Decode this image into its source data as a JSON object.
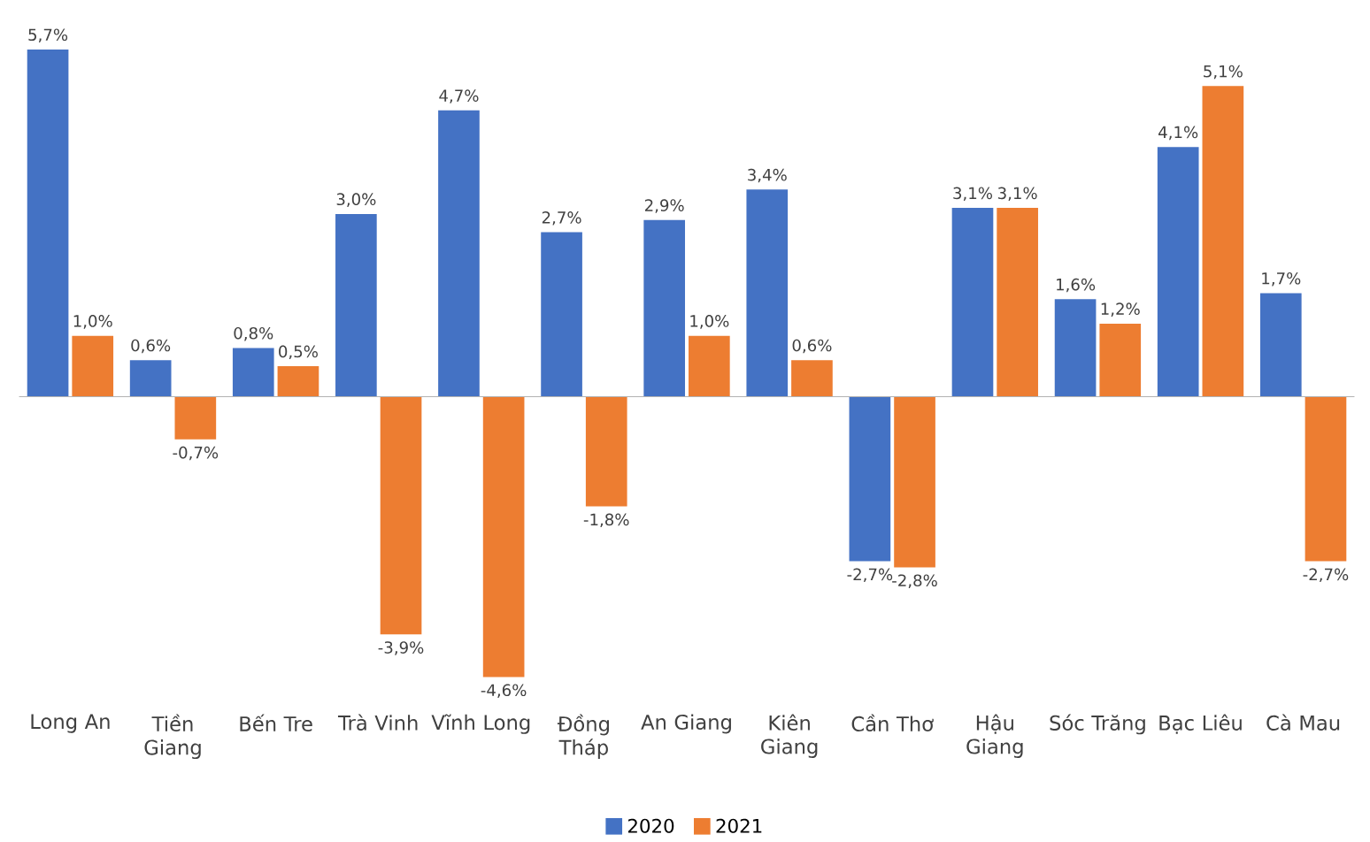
{
  "chart_data": {
    "type": "bar",
    "categories": [
      "Long An",
      "Tiền Giang",
      "Bến Tre",
      "Trà Vinh",
      "Vĩnh Long",
      "Đồng Tháp",
      "An Giang",
      "Kiên Giang",
      "Cần Thơ",
      "Hậu Giang",
      "Sóc Trăng",
      "Bạc Liêu",
      "Cà Mau"
    ],
    "series": [
      {
        "name": "2020",
        "color": "#4472c4",
        "values": [
          5.7,
          0.6,
          0.8,
          3.0,
          4.7,
          2.7,
          2.9,
          3.4,
          -2.7,
          3.1,
          1.6,
          4.1,
          1.7
        ],
        "value_labels": [
          "5,7%",
          "0,6%",
          "0,8%",
          "3,0%",
          "4,7%",
          "2,7%",
          "2,9%",
          "3,4%",
          "-2,7%",
          "3,1%",
          "1,6%",
          "4,1%",
          "1,7%"
        ]
      },
      {
        "name": "2021",
        "color": "#ed7d31",
        "values": [
          1.0,
          -0.7,
          0.5,
          -3.9,
          -4.6,
          -1.8,
          1.0,
          0.6,
          -2.8,
          3.1,
          1.2,
          5.1,
          -2.7
        ],
        "value_labels": [
          "1,0%",
          "-0,7%",
          "0,5%",
          "-3,9%",
          "-4,6%",
          "-1,8%",
          "1,0%",
          "0,6%",
          "-2,8%",
          "3,1%",
          "1,2%",
          "5,1%",
          "-2,7%"
        ]
      }
    ],
    "legend": "bottom"
  }
}
